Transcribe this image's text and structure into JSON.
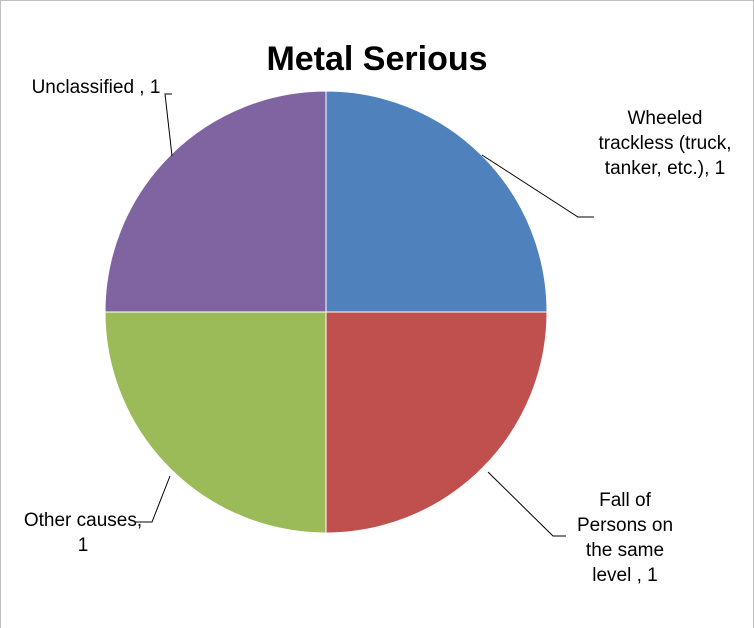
{
  "chart_data": {
    "type": "pie",
    "title": "Metal Serious",
    "slices": [
      {
        "label": "Wheeled trackless (truck, tanker, etc.), 1",
        "category": "Wheeled trackless (truck, tanker, etc.)",
        "value": 1,
        "color": "#4f81bd"
      },
      {
        "label": "Fall of Persons on the same level , 1",
        "category": "Fall of Persons on the same level",
        "value": 1,
        "color": "#c0504d"
      },
      {
        "label": "Other causes, 1",
        "category": "Other causes",
        "value": 1,
        "color": "#9bbb59"
      },
      {
        "label": "Unclassified , 1",
        "category": "Unclassified",
        "value": 1,
        "color": "#8064a2"
      }
    ],
    "legend": "none",
    "data_labels": "outside with leader lines"
  }
}
